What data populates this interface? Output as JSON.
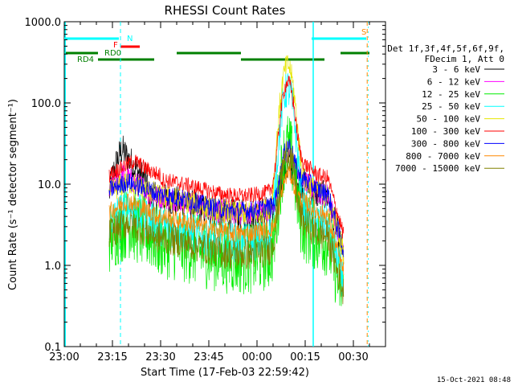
{
  "chart_data": {
    "type": "line",
    "title": "RHESSI Count Rates",
    "xlabel": "Start Time (17-Feb-03 22:59:42)",
    "ylabel": "Count Rate (s⁻¹ detector segment⁻¹)",
    "yscale": "log",
    "ylim": [
      0.1,
      1000
    ],
    "xlim_minutes": [
      0,
      100
    ],
    "x_tick_labels": [
      "23:00",
      "23:15",
      "23:30",
      "23:45",
      "00:00",
      "00:15",
      "00:30"
    ],
    "x_tick_minutes": [
      0,
      15,
      30,
      45,
      60,
      75,
      90
    ],
    "y_tick_labels": [
      "0.1",
      "1.0",
      "10.0",
      "100.0",
      "1000.0"
    ],
    "y_tick_values": [
      0.1,
      1,
      10,
      100,
      1000
    ],
    "legend_header": [
      "Det 1f,3f,4f,5f,6f,9f,",
      "FDecim 1, Att 0"
    ],
    "legend_position": "right",
    "data_start_minute": 14,
    "data_end_minute": 87,
    "series": [
      {
        "name": "3 - 6 keV",
        "color": "#000000",
        "base": 7.5,
        "peak": 27,
        "peak_minute": 18,
        "flare": 18,
        "noise": 0.2
      },
      {
        "name": "6 - 12 keV",
        "color": "#ff00ff",
        "base": 8.0,
        "peak": 14,
        "peak_minute": 18,
        "flare": 25,
        "noise": 0.15
      },
      {
        "name": "12 - 25 keV",
        "color": "#00ee00",
        "base": 2.2,
        "peak": 3.5,
        "peak_minute": 20,
        "flare": 28,
        "noise": 0.45
      },
      {
        "name": "25 - 50 keV",
        "color": "#00ffff",
        "base": 3.5,
        "peak": 5.5,
        "peak_minute": 20,
        "flare": 150,
        "noise": 0.25
      },
      {
        "name": "50 - 100 keV",
        "color": "#e6e600",
        "base": 8.0,
        "peak": 11,
        "peak_minute": 20,
        "flare": 290,
        "noise": 0.15
      },
      {
        "name": "100 - 300 keV",
        "color": "#ff0000",
        "base": 13,
        "peak": 20,
        "peak_minute": 22,
        "flare": 180,
        "noise": 0.1
      },
      {
        "name": "300 - 800 keV",
        "color": "#0000ff",
        "base": 8.5,
        "peak": 11,
        "peak_minute": 20,
        "flare": 30,
        "noise": 0.12
      },
      {
        "name": "800 - 7000 keV",
        "color": "#ff8800",
        "base": 4.5,
        "peak": 6.5,
        "peak_minute": 20,
        "flare": 14,
        "noise": 0.12
      },
      {
        "name": "7000 - 15000 keV",
        "color": "#808000",
        "base": 2.5,
        "peak": 3.5,
        "peak_minute": 20,
        "flare": 25,
        "noise": 0.2
      }
    ],
    "annotations": [
      {
        "label": "N",
        "color": "#00ffff",
        "minute": 17.5
      },
      {
        "label": "S",
        "color": "#ff8800",
        "minute": 93.5
      },
      {
        "label": "F",
        "color": "#ff0000",
        "minute": 20
      },
      {
        "label": "RD0",
        "color": "#008000",
        "minute": 13
      },
      {
        "label": "RD4",
        "color": "#008000",
        "minute": 4
      }
    ],
    "bars": {
      "cyan_top": [
        [
          0,
          17
        ],
        [
          77,
          94
        ]
      ],
      "red_flare": [
        [
          17.5,
          23.5
        ]
      ],
      "green_upper": [
        [
          0,
          10.5
        ],
        [
          35,
          55
        ],
        [
          86,
          95
        ]
      ],
      "green_lower": [
        [
          10.5,
          28
        ],
        [
          55,
          81
        ]
      ],
      "cyan_vertical_solid": [
        0.3,
        77.5
      ],
      "cyan_vertical_dashed": [
        17.5
      ],
      "orange_vertical_dashed": [
        94.3
      ]
    }
  },
  "timestamp": "15-Oct-2021 08:48"
}
